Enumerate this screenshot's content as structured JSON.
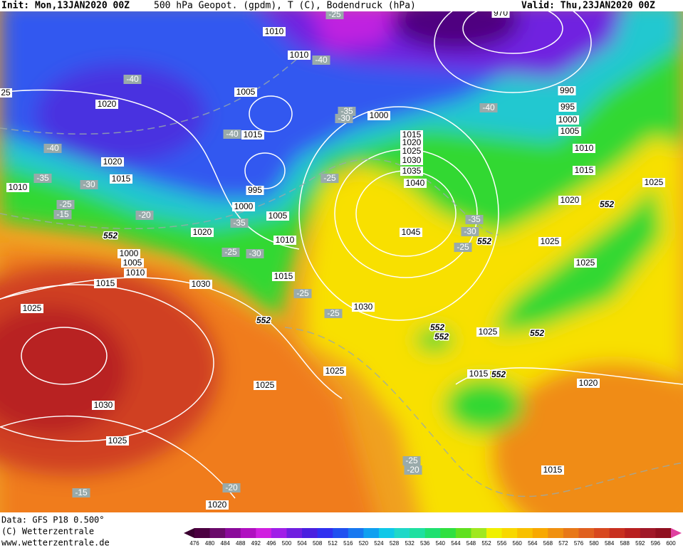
{
  "header": {
    "init": "Init: Mon,13JAN2020 00Z",
    "title": "500 hPa Geopot. (gpdm), T (C), Bodendruck (hPa)",
    "valid": "Valid: Thu,23JAN2020 00Z"
  },
  "footer": {
    "data": "Data: GFS P18 0.500°",
    "copyright": "(C) Wetterzentrale",
    "url": "www.wetterzentrale.de"
  },
  "colorbar": {
    "labels": [
      476,
      480,
      484,
      488,
      492,
      496,
      500,
      504,
      508,
      512,
      516,
      520,
      524,
      528,
      532,
      536,
      540,
      544,
      548,
      552,
      556,
      560,
      564,
      568,
      572,
      576,
      580,
      584,
      588,
      592,
      596,
      600
    ]
  },
  "map": {
    "isobar_labels": [
      1010,
      1010,
      1005,
      1020,
      1015,
      1000,
      1015,
      1020,
      1025,
      1030,
      1035,
      1040,
      995,
      1000,
      1005,
      1020,
      1015,
      1010,
      1020,
      1010,
      1045,
      1000,
      1005,
      1010,
      1015,
      1030,
      1015,
      1025,
      1030,
      1025,
      1025,
      1030,
      1025,
      1020,
      1015,
      1020,
      1015,
      1025,
      1025,
      1025,
      1020,
      1015,
      1010,
      1005,
      1000,
      995,
      990,
      970,
      1025,
      25
    ],
    "temperature_labels": [
      -25,
      -40,
      -40,
      -40,
      -35,
      -30,
      -40,
      -40,
      -35,
      -30,
      -25,
      -15,
      -20,
      -25,
      -35,
      -25,
      -30,
      -35,
      -30,
      -25,
      -25,
      -25,
      -25,
      -20,
      -15,
      -20
    ],
    "geopotential_labels": [
      552,
      552,
      552,
      552,
      552,
      552,
      552,
      552
    ]
  }
}
